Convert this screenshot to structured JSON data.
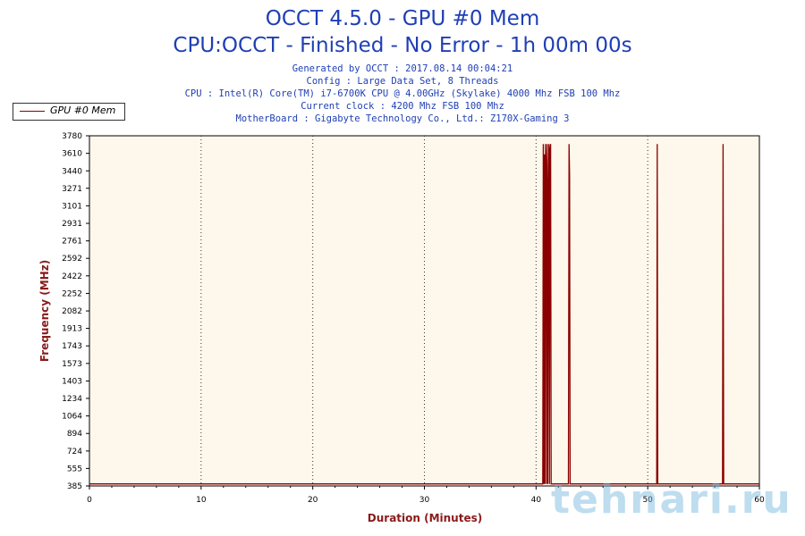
{
  "header": {
    "title": "OCCT 4.5.0 - GPU #0 Mem",
    "subtitle": "CPU:OCCT - Finished - No Error - 1h 00m 00s",
    "info_lines": [
      "Generated by OCCT : 2017.08.14 00:04:21",
      "Config : Large Data Set, 8 Threads",
      "CPU : Intel(R) Core(TM) i7-6700K CPU @ 4.00GHz (Skylake) 4000 Mhz FSB 100 Mhz",
      "Current clock : 4200 Mhz FSB 100 Mhz",
      "MotherBoard : Gigabyte Technology Co., Ltd.: Z170X-Gaming 3"
    ]
  },
  "watermark": "tehnari.ru",
  "colors": {
    "series": "#8b0000",
    "plot_background": "#fdf8eb",
    "title": "#1f3fb4",
    "axis_title": "#8b1a1a"
  },
  "chart_data": {
    "type": "line",
    "title": "OCCT 4.5.0 - GPU #0 Mem",
    "xlabel": "Duration (Minutes)",
    "ylabel": "Frequency (MHz)",
    "xlim": [
      0,
      60
    ],
    "ylim": [
      385,
      3780
    ],
    "x_ticks": [
      0,
      10,
      20,
      30,
      40,
      50,
      60
    ],
    "y_ticks": [
      385,
      555,
      724,
      894,
      1064,
      1234,
      1403,
      1573,
      1743,
      1913,
      2082,
      2252,
      2422,
      2592,
      2761,
      2931,
      3101,
      3271,
      3440,
      3610,
      3780
    ],
    "grid": "vertical dotted",
    "legend_position": "top-left",
    "series": [
      {
        "name": "GPU #0 Mem",
        "x": [
          0,
          40.6,
          40.65,
          40.7,
          40.75,
          40.8,
          40.85,
          40.9,
          40.95,
          41.0,
          41.05,
          41.1,
          41.15,
          41.2,
          41.25,
          41.3,
          41.35,
          41.4,
          41.45,
          42.9,
          42.95,
          43.0,
          43.05,
          43.1,
          43.15,
          50.8,
          50.85,
          50.9,
          50.95,
          56.7,
          56.75,
          56.8,
          60
        ],
        "y": [
          405,
          405,
          3700,
          405,
          3600,
          405,
          3700,
          3500,
          405,
          3700,
          405,
          3300,
          3700,
          405,
          3650,
          3700,
          405,
          405,
          405,
          405,
          3700,
          3400,
          405,
          405,
          405,
          405,
          3700,
          405,
          405,
          405,
          3700,
          405,
          405
        ]
      }
    ]
  }
}
